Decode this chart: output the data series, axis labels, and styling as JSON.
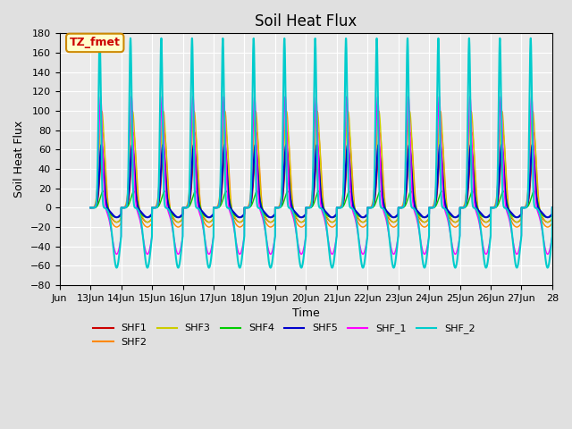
{
  "title": "Soil Heat Flux",
  "xlabel": "Time",
  "ylabel": "Soil Heat Flux",
  "xlim": [
    0,
    16
  ],
  "ylim": [
    -80,
    180
  ],
  "yticks": [
    -80,
    -60,
    -40,
    -20,
    0,
    20,
    40,
    60,
    80,
    100,
    120,
    140,
    160,
    180
  ],
  "xtick_positions": [
    0,
    1,
    2,
    3,
    4,
    5,
    6,
    7,
    8,
    9,
    10,
    11,
    12,
    13,
    14,
    15,
    16
  ],
  "xtick_labels": [
    "Jun",
    "13Jun",
    "14Jun",
    "15Jun",
    "16Jun",
    "17Jun",
    "18Jun",
    "19Jun",
    "20Jun",
    "21Jun",
    "22Jun",
    "23Jun",
    "24Jun",
    "25Jun",
    "26Jun",
    "27Jun",
    "28"
  ],
  "annotation_text": "TZ_fmet",
  "annotation_bg": "#ffffcc",
  "annotation_border": "#cc8800",
  "annotation_text_color": "#cc0000",
  "colors": {
    "SHF1": "#cc0000",
    "SHF2": "#ff8800",
    "SHF3": "#cccc00",
    "SHF4": "#00cc00",
    "SHF5": "#0000cc",
    "SHF_1": "#ff00ff",
    "SHF_2": "#00cccc"
  },
  "legend_entries": [
    "SHF1",
    "SHF2",
    "SHF3",
    "SHF4",
    "SHF5",
    "SHF_1",
    "SHF_2"
  ],
  "background_color": "#e0e0e0",
  "plot_bg": "#ebebeb",
  "n_cycles": 15,
  "points_per_cycle": 240,
  "shf1_peak": 60,
  "shf1_trough": -15,
  "shf2_peak": 80,
  "shf2_trough": -20,
  "shf3_peak": 100,
  "shf3_trough": -15,
  "shf4_peak": 20,
  "shf4_trough": -10,
  "shf5_peak": 65,
  "shf5_trough": -10,
  "shf_1_peak": 115,
  "shf_1_trough": -48,
  "shf_2_peak": 175,
  "shf_2_trough": -62
}
